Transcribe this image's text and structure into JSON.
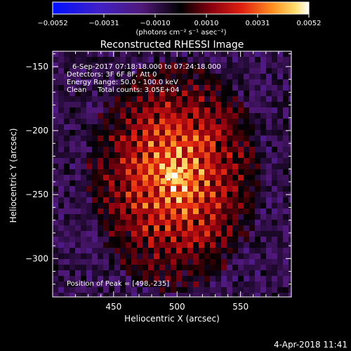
{
  "colorbar": {
    "min": -0.0052,
    "max": 0.0052,
    "tick_labels": [
      "−0.0052",
      "−0.0031",
      "−0.0010",
      "0.0010",
      "0.0031",
      "0.0052"
    ],
    "unit_label": "(photons cm⁻² s⁻¹ asec⁻²)"
  },
  "footer_timestamp": "4-Apr-2018 11:41",
  "chart_data": {
    "type": "heatmap",
    "title": "Reconstructed RHESSI Image",
    "xlabel": "Heliocentric X (arcsec)",
    "ylabel": "Heliocentric Y (arcsec)",
    "xlim": [
      402,
      590
    ],
    "ylim": [
      -330,
      -138
    ],
    "xticks": [
      450,
      500,
      550
    ],
    "xtick_labels": [
      "450",
      "500",
      "550"
    ],
    "yticks": [
      -150,
      -200,
      -250,
      -300
    ],
    "ytick_labels": [
      "−150",
      "−200",
      "−250",
      "−300"
    ],
    "annotations": [
      "6-Sep-2017 07:18:18.000 to 07:24:18.000",
      "Detectors: 3F 6F 8F, Att 0",
      "Energy Range: 50.0 - 100.0 keV",
      "Clean     Total counts: 3.05E+04"
    ],
    "peak_label": "Position of Peak = [498,-235]",
    "peak": {
      "x": 498,
      "y": -235
    },
    "colors": {
      "low": "#1020ff",
      "neutral": "#000000",
      "high": "#ffffff",
      "background_hatch": "#5a2aa0"
    }
  }
}
